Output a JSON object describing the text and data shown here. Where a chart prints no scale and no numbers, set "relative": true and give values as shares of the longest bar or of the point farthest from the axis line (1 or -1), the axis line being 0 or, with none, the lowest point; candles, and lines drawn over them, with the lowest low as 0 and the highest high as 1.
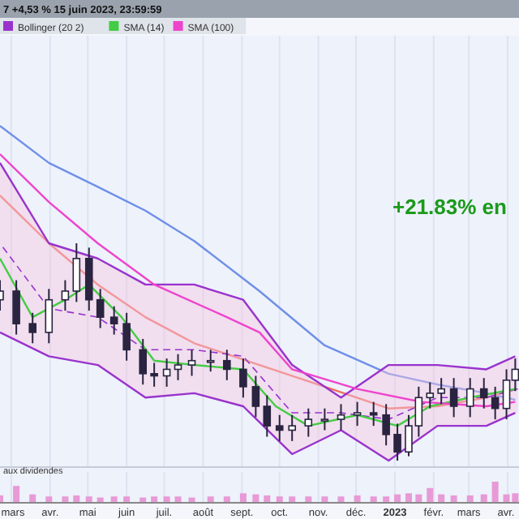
{
  "chart_data": [
    {
      "type": "candlestick",
      "title": "7 +4,53 % 15 juin 2023, 23:59:59",
      "relative": true,
      "legend": "top left",
      "grid": "x",
      "tick_labels": false,
      "annotations": [
        "+21.83% en"
      ],
      "xlim": [
        "2022-02-20",
        "2023-04-10"
      ],
      "x": [
        "2022-02-20",
        "2022-03-05",
        "2022-03-18",
        "2022-03-31",
        "2022-04-13",
        "2022-04-22",
        "2022-05-02",
        "2022-05-11",
        "2022-05-22",
        "2022-06-01",
        "2022-06-14",
        "2022-06-23",
        "2022-07-03",
        "2022-07-12",
        "2022-07-23",
        "2022-08-07",
        "2022-08-20",
        "2022-09-02",
        "2022-09-12",
        "2022-09-21",
        "2022-10-01",
        "2022-10-11",
        "2022-10-24",
        "2022-11-06",
        "2022-11-19",
        "2022-12-02",
        "2022-12-15",
        "2022-12-25",
        "2023-01-03",
        "2023-01-12",
        "2023-01-20",
        "2023-01-29",
        "2023-02-07",
        "2023-02-17",
        "2023-03-02",
        "2023-03-13",
        "2023-03-22",
        "2023-03-31",
        "2023-04-07"
      ],
      "color": "#2a2440",
      "ohlc": [
        [
          0.74,
          0.83,
          0.69,
          0.78
        ],
        [
          0.78,
          0.83,
          0.58,
          0.63
        ],
        [
          0.63,
          0.68,
          0.54,
          0.59
        ],
        [
          0.59,
          0.79,
          0.54,
          0.74
        ],
        [
          0.74,
          0.83,
          0.69,
          0.78
        ],
        [
          0.78,
          1.0,
          0.73,
          0.93
        ],
        [
          0.93,
          0.98,
          0.69,
          0.74
        ],
        [
          0.74,
          0.79,
          0.61,
          0.66
        ],
        [
          0.66,
          0.71,
          0.58,
          0.63
        ],
        [
          0.63,
          0.68,
          0.46,
          0.51
        ],
        [
          0.51,
          0.56,
          0.35,
          0.4
        ],
        [
          0.4,
          0.45,
          0.34,
          0.39
        ],
        [
          0.39,
          0.47,
          0.34,
          0.42
        ],
        [
          0.42,
          0.49,
          0.37,
          0.44
        ],
        [
          0.44,
          0.51,
          0.39,
          0.46
        ],
        [
          0.46,
          0.51,
          0.41,
          0.46
        ],
        [
          0.46,
          0.51,
          0.37,
          0.42
        ],
        [
          0.42,
          0.47,
          0.29,
          0.34
        ],
        [
          0.34,
          0.39,
          0.2,
          0.25
        ],
        [
          0.25,
          0.3,
          0.11,
          0.16
        ],
        [
          0.16,
          0.21,
          0.09,
          0.14
        ],
        [
          0.14,
          0.21,
          0.09,
          0.16
        ],
        [
          0.16,
          0.24,
          0.11,
          0.19
        ],
        [
          0.19,
          0.24,
          0.14,
          0.19
        ],
        [
          0.19,
          0.26,
          0.14,
          0.21
        ],
        [
          0.21,
          0.27,
          0.16,
          0.22
        ],
        [
          0.22,
          0.27,
          0.16,
          0.21
        ],
        [
          0.21,
          0.26,
          0.07,
          0.12
        ],
        [
          0.12,
          0.17,
          0.0,
          0.04
        ],
        [
          0.04,
          0.21,
          0.02,
          0.16
        ],
        [
          0.16,
          0.34,
          0.11,
          0.29
        ],
        [
          0.29,
          0.36,
          0.24,
          0.31
        ],
        [
          0.31,
          0.38,
          0.26,
          0.33
        ],
        [
          0.33,
          0.38,
          0.2,
          0.25
        ],
        [
          0.25,
          0.38,
          0.2,
          0.33
        ],
        [
          0.33,
          0.38,
          0.24,
          0.29
        ],
        [
          0.29,
          0.34,
          0.19,
          0.24
        ],
        [
          0.24,
          0.42,
          0.19,
          0.37
        ],
        [
          0.37,
          0.47,
          0.32,
          0.42
        ]
      ],
      "series": [
        {
          "type": "line",
          "color": "#6f8fe8",
          "x": [
            "2022-02-20",
            "2022-03-31",
            "2022-05-09",
            "2022-06-16",
            "2022-07-25",
            "2022-09-15",
            "2022-11-06",
            "2022-12-27",
            "2023-02-04",
            "2023-03-15",
            "2023-04-07"
          ],
          "values": [
            1.54,
            1.37,
            1.26,
            1.15,
            1.01,
            0.78,
            0.53,
            0.4,
            0.35,
            0.31,
            0.28
          ]
        },
        {
          "type": "line",
          "color": "#f07060",
          "x": [
            "2022-02-20",
            "2022-03-31",
            "2022-05-09",
            "2022-06-16",
            "2022-07-25",
            "2022-09-15",
            "2022-11-06",
            "2022-12-27",
            "2023-02-04",
            "2023-03-15",
            "2023-04-07"
          ],
          "values": [
            1.22,
            1.0,
            0.81,
            0.66,
            0.54,
            0.44,
            0.34,
            0.24,
            0.25,
            0.29,
            0.33
          ]
        },
        {
          "type": "line",
          "name": "Bollinger (20 2)",
          "color": "#9933cc",
          "line_style": "dashed",
          "x": [
            "2022-02-20",
            "2022-03-31",
            "2022-05-09",
            "2022-06-16",
            "2022-07-25",
            "2022-09-02",
            "2022-10-11",
            "2022-11-19",
            "2022-12-27",
            "2023-02-04",
            "2023-03-15",
            "2023-04-09"
          ],
          "values": [
            1.0,
            0.7,
            0.66,
            0.51,
            0.51,
            0.48,
            0.22,
            0.22,
            0.19,
            0.29,
            0.29,
            0.33
          ],
          "upper": [
            1.37,
            1.0,
            0.93,
            0.81,
            0.81,
            0.74,
            0.44,
            0.29,
            0.44,
            0.44,
            0.42,
            0.48
          ],
          "lower": [
            0.59,
            0.48,
            0.44,
            0.29,
            0.31,
            0.25,
            0.03,
            0.14,
            0.0,
            0.16,
            0.16,
            0.22
          ]
        },
        {
          "type": "line",
          "color": "#9933cc",
          "x": [
            "2022-02-20",
            "2022-03-31",
            "2022-05-09",
            "2022-06-16",
            "2022-07-25",
            "2022-09-02",
            "2022-10-11",
            "2022-11-19",
            "2022-12-27",
            "2023-02-04",
            "2023-03-15",
            "2023-04-07"
          ],
          "values": [
            1.37,
            1.0,
            0.93,
            0.81,
            0.81,
            0.74,
            0.44,
            0.29,
            0.44,
            0.44,
            0.42,
            0.48
          ]
        },
        {
          "type": "line",
          "color": "#9933cc",
          "x": [
            "2022-02-20",
            "2022-03-31",
            "2022-05-09",
            "2022-06-16",
            "2022-07-25",
            "2022-09-02",
            "2022-10-11",
            "2022-11-19",
            "2022-12-27",
            "2023-02-04",
            "2023-03-15",
            "2023-04-07"
          ],
          "values": [
            0.59,
            0.48,
            0.44,
            0.29,
            0.31,
            0.25,
            0.03,
            0.14,
            0.0,
            0.16,
            0.16,
            0.22
          ]
        },
        {
          "type": "line",
          "name": "SMA (14)",
          "color": "#44cc44",
          "x": [
            "2022-02-20",
            "2022-03-18",
            "2022-04-13",
            "2022-05-02",
            "2022-05-28",
            "2022-06-23",
            "2022-07-25",
            "2022-09-02",
            "2022-09-28",
            "2022-10-24",
            "2022-12-02",
            "2023-01-03",
            "2023-01-29",
            "2023-03-02",
            "2023-04-07"
          ],
          "values": [
            0.93,
            0.66,
            0.74,
            0.81,
            0.66,
            0.46,
            0.44,
            0.42,
            0.25,
            0.16,
            0.21,
            0.16,
            0.25,
            0.29,
            0.33
          ]
        },
        {
          "type": "line",
          "name": "SMA (100)",
          "color": "#ee44cc",
          "x": [
            "2022-02-20",
            "2022-03-31",
            "2022-05-09",
            "2022-06-23",
            "2022-08-20",
            "2022-09-15",
            "2022-10-11",
            "2022-12-02",
            "2023-01-22",
            "2023-03-15",
            "2023-04-07"
          ],
          "values": [
            1.41,
            1.19,
            1.0,
            0.81,
            0.66,
            0.59,
            0.42,
            0.33,
            0.27,
            0.25,
            0.27
          ]
        }
      ]
    },
    {
      "type": "bar",
      "relative": true,
      "color": "#e79ad6",
      "grid": "x",
      "annotations": [
        "aux dividendes"
      ],
      "xlim": [
        "2022-02-20",
        "2023-04-10"
      ],
      "xticks": [
        {
          "value": "2022-03-01",
          "label": "mars"
        },
        {
          "value": "2022-04-01",
          "label": "avr."
        },
        {
          "value": "2022-05-01",
          "label": "mai"
        },
        {
          "value": "2022-06-01",
          "label": "juin"
        },
        {
          "value": "2022-07-01",
          "label": "juil."
        },
        {
          "value": "2022-08-01",
          "label": "août"
        },
        {
          "value": "2022-09-01",
          "label": "sept."
        },
        {
          "value": "2022-10-01",
          "label": "oct."
        },
        {
          "value": "2022-11-01",
          "label": "nov."
        },
        {
          "value": "2022-12-01",
          "label": "déc."
        },
        {
          "value": "2023-01-01",
          "label": "2023"
        },
        {
          "value": "2023-02-01",
          "label": "févr."
        },
        {
          "value": "2023-03-01",
          "label": "mars"
        },
        {
          "value": "2023-04-01",
          "label": "avr."
        }
      ],
      "x": [
        "2022-02-20",
        "2022-03-05",
        "2022-03-18",
        "2022-03-31",
        "2022-04-13",
        "2022-04-22",
        "2022-05-02",
        "2022-05-11",
        "2022-05-22",
        "2022-06-01",
        "2022-06-14",
        "2022-06-23",
        "2022-07-03",
        "2022-07-12",
        "2022-07-23",
        "2022-08-07",
        "2022-08-20",
        "2022-09-02",
        "2022-09-12",
        "2022-09-21",
        "2022-10-01",
        "2022-10-11",
        "2022-10-24",
        "2022-11-06",
        "2022-11-19",
        "2022-12-02",
        "2022-12-15",
        "2022-12-25",
        "2023-01-03",
        "2023-01-12",
        "2023-01-20",
        "2023-01-29",
        "2023-02-07",
        "2023-02-17",
        "2023-03-02",
        "2023-03-13",
        "2023-03-22",
        "2023-03-31",
        "2023-04-07"
      ],
      "values": [
        0.35,
        0.8,
        0.4,
        0.3,
        0.3,
        0.35,
        0.3,
        0.25,
        0.3,
        0.3,
        0.25,
        0.3,
        0.3,
        0.3,
        0.25,
        0.3,
        0.3,
        0.45,
        0.4,
        0.35,
        0.3,
        0.3,
        0.3,
        0.3,
        0.3,
        0.35,
        0.3,
        0.3,
        0.4,
        0.45,
        0.4,
        0.7,
        0.4,
        0.35,
        0.35,
        0.4,
        1.0,
        0.4,
        0.45
      ]
    }
  ]
}
